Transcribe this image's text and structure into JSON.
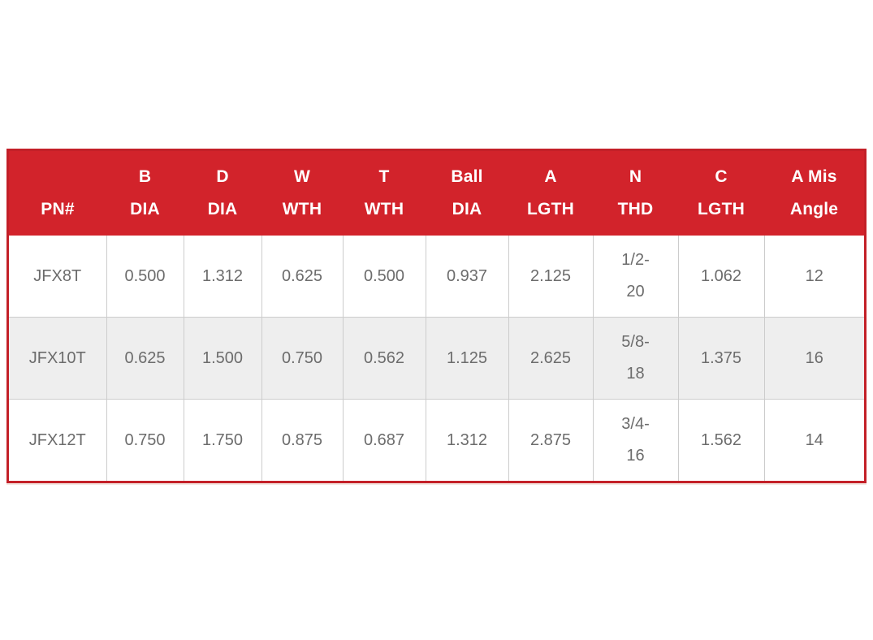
{
  "page": {
    "background_color": "#ffffff"
  },
  "table": {
    "style": {
      "header_bg": "#d2232b",
      "header_text_color": "#ffffff",
      "outer_border_color": "#c32028",
      "grid_line_color": "#cccccc",
      "stripe_row_bg": "#eeeeee",
      "body_text_color": "#6c6c6c"
    },
    "columns": [
      {
        "line1": "",
        "line2": "PN#"
      },
      {
        "line1": "B",
        "line2": "DIA"
      },
      {
        "line1": "D",
        "line2": "DIA"
      },
      {
        "line1": "W",
        "line2": "WTH"
      },
      {
        "line1": "T",
        "line2": "WTH"
      },
      {
        "line1": "Ball",
        "line2": "DIA"
      },
      {
        "line1": "A",
        "line2": "LGTH"
      },
      {
        "line1": "N",
        "line2": "THD"
      },
      {
        "line1": "C",
        "line2": "LGTH"
      },
      {
        "line1": "A Mis",
        "line2": "Angle"
      }
    ],
    "rows": [
      {
        "cells": [
          "JFX8T",
          "0.500",
          "1.312",
          "0.625",
          "0.500",
          "0.937",
          "2.125",
          [
            "1/2-",
            "20"
          ],
          "1.062",
          "12"
        ]
      },
      {
        "cells": [
          "JFX10T",
          "0.625",
          "1.500",
          "0.750",
          "0.562",
          "1.125",
          "2.625",
          [
            "5/8-",
            "18"
          ],
          "1.375",
          "16"
        ]
      },
      {
        "cells": [
          "JFX12T",
          "0.750",
          "1.750",
          "0.875",
          "0.687",
          "1.312",
          "2.875",
          [
            "3/4-",
            "16"
          ],
          "1.562",
          "14"
        ]
      }
    ]
  },
  "chart_data": {
    "type": "table",
    "columns": [
      "PN#",
      "B DIA",
      "D DIA",
      "W WTH",
      "T WTH",
      "Ball DIA",
      "A LGTH",
      "N THD",
      "C LGTH",
      "A Mis Angle"
    ],
    "rows": [
      [
        "JFX8T",
        0.5,
        1.312,
        0.625,
        0.5,
        0.937,
        2.125,
        "1/2-20",
        1.062,
        12
      ],
      [
        "JFX10T",
        0.625,
        1.5,
        0.75,
        0.562,
        1.125,
        2.625,
        "5/8-18",
        1.375,
        16
      ],
      [
        "JFX12T",
        0.75,
        1.75,
        0.875,
        0.687,
        1.312,
        2.875,
        "3/4-16",
        1.562,
        14
      ]
    ]
  }
}
